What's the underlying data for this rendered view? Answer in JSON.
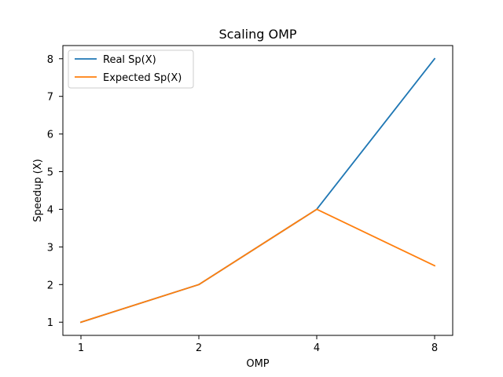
{
  "chart_data": {
    "type": "line",
    "title": "Scaling OMP",
    "xlabel": "OMP",
    "ylabel": "Speedup (X)",
    "x_scale": "categorical",
    "categories": [
      "1",
      "2",
      "4",
      "8"
    ],
    "yticks": [
      "1",
      "2",
      "3",
      "4",
      "5",
      "6",
      "7",
      "8"
    ],
    "ylim": [
      0.65,
      8.35
    ],
    "grid": false,
    "legend_position": "top-left",
    "series": [
      {
        "name": "Real Sp(X)",
        "color": "#1f77b4",
        "values": [
          1,
          2,
          4,
          8
        ]
      },
      {
        "name": "Expected Sp(X)",
        "color": "#ff7f0e",
        "values": [
          1,
          2,
          4,
          2.5
        ]
      }
    ]
  }
}
